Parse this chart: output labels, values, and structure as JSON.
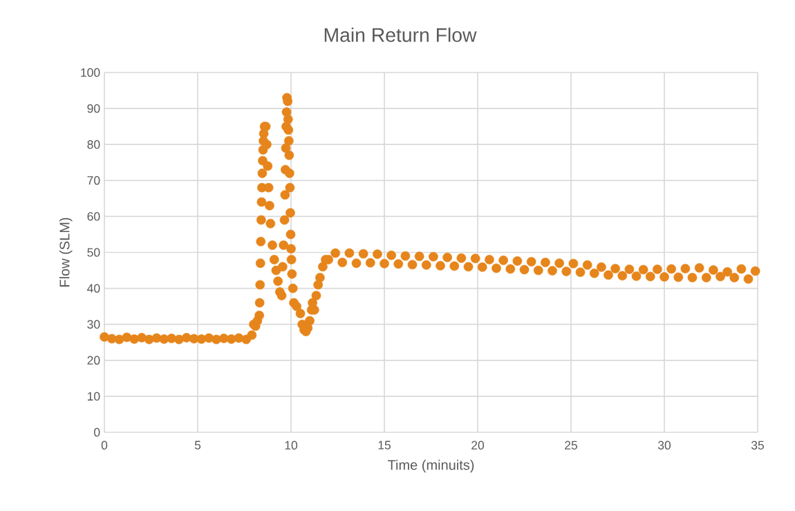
{
  "chart_data": {
    "type": "scatter",
    "title": "Main Return Flow",
    "xlabel": "Time (minuits)",
    "ylabel": "Flow (SLM)",
    "xlim": [
      0,
      35
    ],
    "xticks": [
      0,
      5,
      10,
      15,
      20,
      25,
      30,
      35
    ],
    "ylim": [
      0,
      100
    ],
    "yticks": [
      0,
      10,
      20,
      30,
      40,
      50,
      60,
      70,
      80,
      90,
      100
    ],
    "grid": true,
    "marker": "circle",
    "legend": false,
    "series": [
      {
        "color": "#e6851b",
        "x": [
          0,
          0.4,
          0.8,
          1.2,
          1.6,
          2.0,
          2.4,
          2.8,
          3.2,
          3.6,
          4.0,
          4.4,
          4.8,
          5.2,
          5.6,
          6.0,
          6.4,
          6.8,
          7.2,
          7.6,
          7.9,
          8.0,
          8.1,
          8.2,
          8.3,
          8.32,
          8.34,
          8.36,
          8.38,
          8.4,
          8.42,
          8.44,
          8.46,
          8.48,
          8.5,
          8.52,
          8.54,
          8.58,
          8.65,
          8.7,
          8.75,
          8.8,
          8.85,
          8.9,
          9.0,
          9.1,
          9.2,
          9.3,
          9.4,
          9.5,
          9.55,
          9.6,
          9.65,
          9.68,
          9.7,
          9.72,
          9.74,
          9.76,
          9.78,
          9.82,
          9.84,
          9.86,
          9.88,
          9.9,
          9.92,
          9.94,
          9.96,
          9.98,
          10.0,
          10.02,
          10.05,
          10.1,
          10.15,
          10.3,
          10.5,
          10.6,
          10.7,
          10.8,
          10.9,
          11.0,
          11.1,
          11.15,
          11.25,
          11.35,
          11.45,
          11.55,
          11.7,
          11.85,
          12.0,
          12.375,
          12.75,
          13.125,
          13.5,
          13.875,
          14.25,
          14.625,
          15,
          15.375,
          15.75,
          16.125,
          16.5,
          16.875,
          17.25,
          17.625,
          18,
          18.375,
          18.75,
          19.125,
          19.5,
          19.875,
          20.25,
          20.625,
          21,
          21.375,
          21.75,
          22.125,
          22.5,
          22.875,
          23.25,
          23.625,
          24,
          24.375,
          24.75,
          25.125,
          25.5,
          25.875,
          26.25,
          26.625,
          27,
          27.375,
          27.75,
          28.125,
          28.5,
          28.875,
          29.25,
          29.625,
          30,
          30.375,
          30.75,
          31.125,
          31.5,
          31.875,
          32.25,
          32.625,
          33,
          33.375,
          33.75,
          34.125,
          34.5,
          34.875
        ],
        "values": [
          26.5,
          26,
          25.8,
          26.4,
          25.9,
          26.3,
          25.8,
          26.2,
          25.9,
          26.1,
          25.8,
          26.3,
          26,
          25.9,
          26.2,
          25.8,
          26.1,
          25.9,
          26.2,
          25.8,
          27,
          30,
          29.5,
          31,
          32.5,
          36,
          41,
          47,
          53,
          59,
          64,
          68,
          72,
          75.5,
          78.5,
          81,
          83,
          85,
          85,
          80,
          74,
          68,
          63,
          58,
          52,
          48,
          45,
          42,
          39,
          38,
          46,
          52,
          59,
          66,
          73,
          79,
          85,
          89,
          93,
          92,
          87,
          84,
          81,
          77,
          72,
          68,
          61,
          55,
          51,
          48,
          44,
          40,
          36,
          35,
          33,
          30,
          28.5,
          28,
          29,
          31,
          34,
          36,
          34,
          38,
          41,
          43,
          46,
          48,
          48,
          49.8,
          47.2,
          49.8,
          47.0,
          49.6,
          47.1,
          49.5,
          46.9,
          49.2,
          46.8,
          49.0,
          46.6,
          48.9,
          46.5,
          48.8,
          46.3,
          48.6,
          46.2,
          48.4,
          46.0,
          48.3,
          45.9,
          48.0,
          45.6,
          47.8,
          45.4,
          47.6,
          45.2,
          47.4,
          45.0,
          47.2,
          44.9,
          47.0,
          44.7,
          46.9,
          44.5,
          46.5,
          44.2,
          45.9,
          43.7,
          45.5,
          43.5,
          45.3,
          43.4,
          45.2,
          43.3,
          45.3,
          43.2,
          45.4,
          43.1,
          45.5,
          43.0,
          45.7,
          43.0,
          45.1,
          43.3,
          44.6,
          43.0,
          45.4,
          42.6,
          44.8
        ]
      }
    ]
  }
}
